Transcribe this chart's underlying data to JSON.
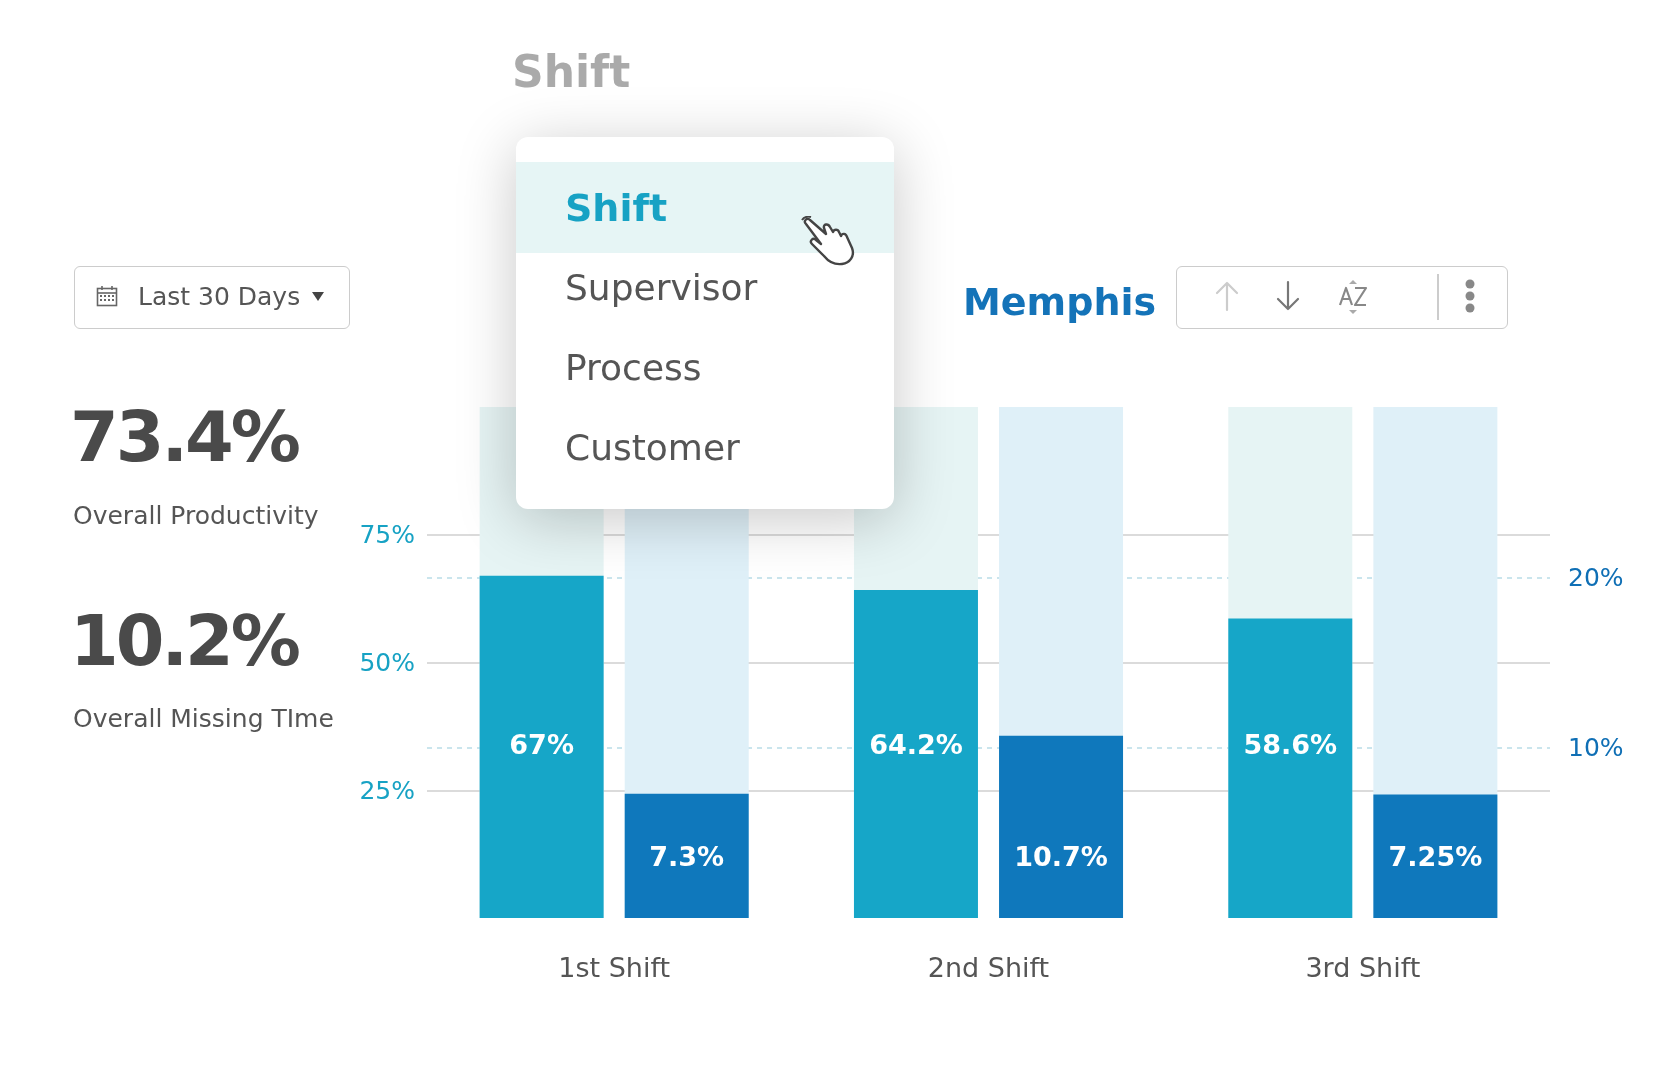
{
  "chart_data": {
    "type": "bar",
    "title": "Memphis",
    "categories": [
      "1st Shift",
      "2nd Shift",
      "3rd Shift"
    ],
    "series": [
      {
        "color": "#16a6c8",
        "values": [
          67,
          64.2,
          58.6
        ],
        "value_labels": [
          "67%",
          "64.2%",
          "58.6%"
        ]
      },
      {
        "color": "#0f78bc",
        "axis": "y2",
        "values": [
          7.3,
          10.7,
          7.25
        ],
        "value_labels": [
          "7.3%",
          "10.7%",
          "7.25%"
        ]
      }
    ],
    "ylim": [
      0,
      100
    ],
    "yticks": [
      {
        "value": 25,
        "label": "25%"
      },
      {
        "value": 50,
        "label": "50%"
      },
      {
        "value": 75,
        "label": "75%"
      }
    ],
    "y2lim": [
      0,
      30
    ],
    "y2ticks": [
      {
        "value": 10,
        "label": "10%"
      },
      {
        "value": 20,
        "label": "20%"
      }
    ],
    "grid": true,
    "annotations": [
      "Shift",
      "Shift",
      "Supervisor",
      "Process",
      "Customer",
      "Last 30 Days",
      "73.4%",
      "Overall Productivity",
      "10.2%",
      "Overall Missing TIme"
    ]
  }
}
